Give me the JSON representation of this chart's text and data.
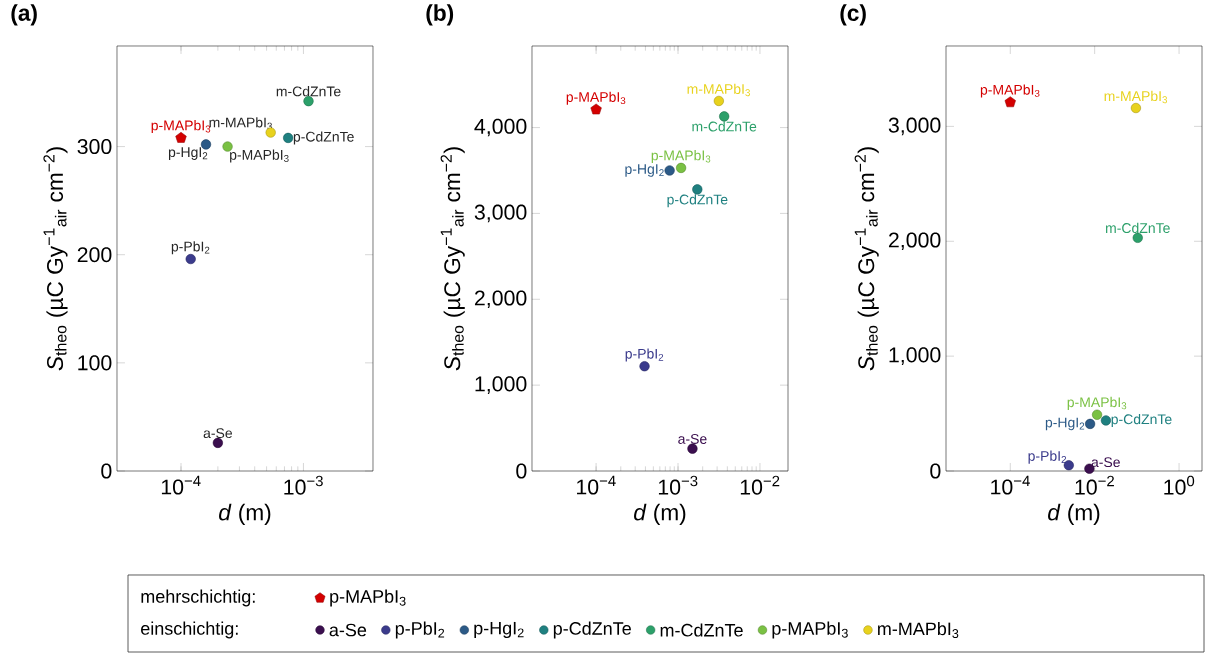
{
  "chart_data": [
    {
      "type": "scatter",
      "title": "(a)",
      "xlabel": "*d* (m)",
      "ylabel": "*S*$_{theo}$ (µC Gy$^{−1}$$_{air}$ cm$^{−2}$)",
      "log": "x",
      "marker": "circle",
      "legend": "bottom",
      "annotations": [
        "mehrschichtig:",
        "einschichtig:"
      ],
      "xlim": [
        3e-05,
        0.0037
      ],
      "ylim": [
        0,
        393
      ],
      "xticks": [
        {
          "value": 0.0001,
          "label": "10$^{−4}$"
        },
        {
          "value": 0.001,
          "label": "10$^{−3}$"
        }
      ],
      "yticks": [
        0,
        100,
        200,
        300
      ],
      "series": [
        {
          "name": "p-MAPbI$_{3}$",
          "color": "#d40000",
          "x": [
            0.0001
          ],
          "values": [
            308
          ]
        },
        {
          "name": "a-Se",
          "color": "#3b0f4f",
          "x": [
            0.0002
          ],
          "values": [
            26
          ]
        },
        {
          "name": "p-PbI$_{2}$",
          "color": "#3b3b8c",
          "x": [
            0.00012
          ],
          "values": [
            196
          ]
        },
        {
          "name": "p-HgI$_{2}$",
          "color": "#2c5a87",
          "x": [
            0.00016
          ],
          "values": [
            302
          ]
        },
        {
          "name": "p-CdZnTe",
          "color": "#1f8080",
          "x": [
            0.00075
          ],
          "values": [
            308
          ]
        },
        {
          "name": "m-CdZnTe",
          "color": "#2ca06a",
          "x": [
            0.0011
          ],
          "values": [
            342
          ]
        },
        {
          "name": "p-MAPbI$_{3}$",
          "color": "#7ac143",
          "x": [
            0.00024
          ],
          "values": [
            300
          ]
        },
        {
          "name": "m-MAPbI$_{3}$",
          "color": "#e8d21d",
          "x": [
            0.00054
          ],
          "values": [
            313
          ]
        }
      ]
    },
    {
      "type": "scatter",
      "title": "(b)",
      "xlabel": "*d* (m)",
      "ylabel": "*S*$_{theo}$ (µC Gy$^{−1}$$_{air}$ cm$^{−2}$)",
      "log": "x",
      "marker": "circle",
      "xlim": [
        1.65e-05,
        0.022
      ],
      "ylim": [
        0,
        4950
      ],
      "xticks": [
        {
          "value": 0.0001,
          "label": "10$^{−4}$"
        },
        {
          "value": 0.001,
          "label": "10$^{−3}$"
        },
        {
          "value": 0.01,
          "label": "10$^{−2}$"
        }
      ],
      "yticks": [
        0,
        {
          "value": 1000,
          "label": "1,000"
        },
        {
          "value": 2000,
          "label": "2,000"
        },
        {
          "value": 3000,
          "label": "3,000"
        },
        {
          "value": 4000,
          "label": "4,000"
        }
      ],
      "series": [
        {
          "name": "p-MAPbI$_{3}$",
          "color": "#d40000",
          "x": [
            0.0001
          ],
          "values": [
            4210
          ]
        },
        {
          "name": "a-Se",
          "color": "#3b0f4f",
          "x": [
            0.0015
          ],
          "values": [
            260
          ]
        },
        {
          "name": "p-PbI$_{2}$",
          "color": "#3b3b8c",
          "x": [
            0.00039
          ],
          "values": [
            1220
          ]
        },
        {
          "name": "p-HgI$_{2}$",
          "color": "#2c5a87",
          "x": [
            0.00079
          ],
          "values": [
            3500
          ]
        },
        {
          "name": "p-CdZnTe",
          "color": "#1f8080",
          "x": [
            0.00172
          ],
          "values": [
            3280
          ]
        },
        {
          "name": "m-CdZnTe",
          "color": "#2ca06a",
          "x": [
            0.00366
          ],
          "values": [
            4130
          ]
        },
        {
          "name": "p-MAPbI$_{3}$",
          "color": "#7ac143",
          "x": [
            0.00109
          ],
          "values": [
            3530
          ]
        },
        {
          "name": "m-MAPbI$_{3}$",
          "color": "#e8d21d",
          "x": [
            0.00315
          ],
          "values": [
            4310
          ]
        }
      ]
    },
    {
      "type": "scatter",
      "title": "(c)",
      "xlabel": "*d* (m)",
      "ylabel": "*S*$_{theo}$ (µC Gy$^{−1}$$_{air}$ cm$^{−2}$)",
      "log": "x",
      "marker": "circle",
      "xlim": [
        3e-06,
        3.5
      ],
      "ylim": [
        0,
        3700
      ],
      "xticks": [
        {
          "value": 0.0001,
          "label": "10$^{−4}$"
        },
        {
          "value": 0.01,
          "label": "10$^{−2}$"
        },
        {
          "value": 1,
          "label": "10$^{0}$"
        }
      ],
      "yticks": [
        0,
        {
          "value": 1000,
          "label": "1,000"
        },
        {
          "value": 2000,
          "label": "2,000"
        },
        {
          "value": 3000,
          "label": "3,000"
        }
      ],
      "series": [
        {
          "name": "p-MAPbI$_{3}$",
          "color": "#d40000",
          "x": [
            0.0001
          ],
          "values": [
            3210
          ]
        },
        {
          "name": "a-Se",
          "color": "#3b0f4f",
          "x": [
            0.0075
          ],
          "values": [
            20
          ]
        },
        {
          "name": "p-PbI$_{2}$",
          "color": "#3b3b8c",
          "x": [
            0.00244
          ],
          "values": [
            50
          ]
        },
        {
          "name": "p-HgI$_{2}$",
          "color": "#2c5a87",
          "x": [
            0.0078
          ],
          "values": [
            410
          ]
        },
        {
          "name": "p-CdZnTe",
          "color": "#1f8080",
          "x": [
            0.0185
          ],
          "values": [
            440
          ]
        },
        {
          "name": "m-CdZnTe",
          "color": "#2ca06a",
          "x": [
            0.105
          ],
          "values": [
            2030
          ]
        },
        {
          "name": "p-MAPbI$_{3}$",
          "color": "#7ac143",
          "x": [
            0.0114
          ],
          "values": [
            490
          ]
        },
        {
          "name": "m-MAPbI$_{3}$",
          "color": "#e8d21d",
          "x": [
            0.095
          ],
          "values": [
            3160
          ]
        }
      ]
    }
  ]
}
